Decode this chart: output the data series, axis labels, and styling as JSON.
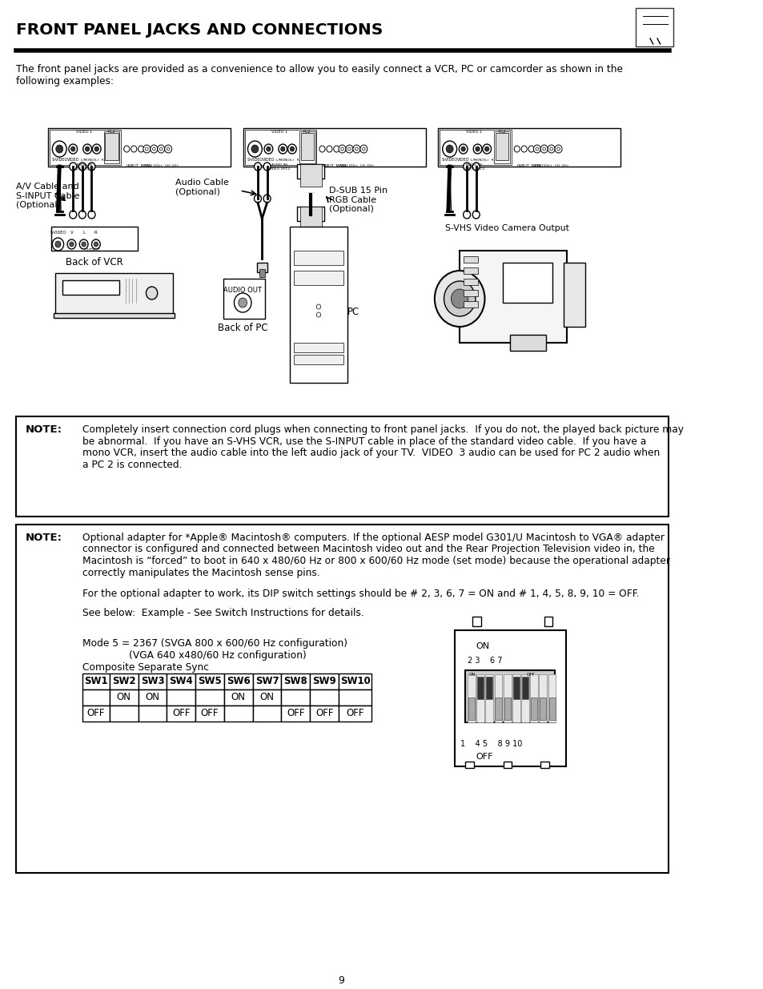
{
  "title": "FRONT PANEL JACKS AND CONNECTIONS",
  "bg_color": "#ffffff",
  "page_number": "9",
  "intro_text": "The front panel jacks are provided as a convenience to allow you to easily connect a VCR, PC or camcorder as shown in the\nfollowing examples:",
  "note1_label": "NOTE:",
  "note1_text_line1": "Completely insert connection cord plugs when connecting to front panel jacks.  If you do not, the played back picture may",
  "note1_text_line2": "be abnormal.  If you have an S-VHS VCR, use the S-INPUT cable in place of the standard video cable.  If you have a",
  "note1_text_line3": "mono VCR, insert the audio cable into the left audio jack of your TV.  VIDEO  3 audio can be used for PC 2 audio when",
  "note1_text_line4": "a PC 2 is connected.",
  "note2_label": "NOTE:",
  "note2_text_line1": "Optional adapter for *Apple® Macintosh® computers. If the optional AESP model G301/U Macintosh to VGA® adapter",
  "note2_text_line2": "connector is configured and connected between Macintosh video out and the Rear Projection Television video in, the",
  "note2_text_line3": "Macintosh is “forced” to boot in 640 x 480/60 Hz or 800 x 600/60 Hz mode (set mode) because the operational adapter",
  "note2_text_line4": "correctly manipulates the Macintosh sense pins.",
  "note2_para2": "For the optional adapter to work, its DIP switch settings should be # 2, 3, 6, 7 = ON and # 1, 4, 5, 8, 9, 10 = OFF.",
  "note2_para3": "See below:  Example - See Switch Instructions for details.",
  "mode_text1": "Mode 5 = 2367 (SVGA 800 x 600/60 Hz configuration)",
  "mode_text2": "               (VGA 640 x480/60 Hz configuration)",
  "mode_text3": "Composite Separate Sync",
  "sw_headers": [
    "SW1",
    "SW2",
    "SW3",
    "SW4",
    "SW5",
    "SW6",
    "SW7",
    "SW8",
    "SW9",
    "SW10"
  ],
  "sw_row2": [
    "",
    "ON",
    "ON",
    "",
    "",
    "ON",
    "ON",
    "",
    "",
    ""
  ],
  "sw_row3": [
    "OFF",
    "",
    "",
    "OFF",
    "OFF",
    "",
    "",
    "OFF",
    "OFF",
    "OFF"
  ],
  "vcr_label": "Back of VCR",
  "pc_label": "PC",
  "back_pc_label": "Back of PC",
  "avcable_label": "A/V Cable and\nS-INPUT Cable\n(Optional)",
  "audio_cable_label": "Audio Cable\n(Optional)",
  "dsub_label": "D-SUB 15 Pin\nRGB Cable\n(Optional)",
  "svhs_label": "S-VHS Video Camera Output",
  "audio_out_label": "AUDIO OUT",
  "on_label": "ON",
  "off_label": "OFF",
  "pos_23_67": "2 3    6 7",
  "pos_1_45_8910": "1    4 5    8 9 10"
}
